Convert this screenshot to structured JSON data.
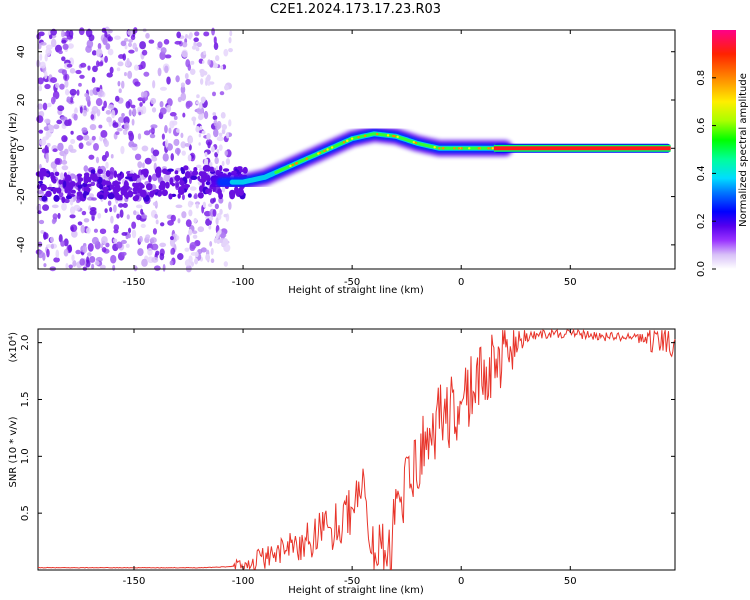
{
  "figure": {
    "title": "C2E1.2024.173.17.23.R03"
  },
  "chart_data": [
    {
      "type": "heatmap",
      "title": "C2E1.2024.173.17.23.R03",
      "xlabel": "Height of straight line (km)",
      "ylabel": "Frequency (Hz)",
      "xlim": [
        -194,
        98
      ],
      "ylim": [
        -50,
        49
      ],
      "xticks": [
        -150,
        -100,
        -50,
        0,
        50
      ],
      "xtick_labels": [
        "-150",
        "-100",
        "-50",
        "0",
        "50"
      ],
      "yticks": [
        -40,
        -20,
        0,
        20,
        40
      ],
      "ytick_labels": [
        "-40",
        "-20",
        "0",
        "20",
        "40"
      ],
      "ridge": {
        "x": [
          -190,
          -175,
          -160,
          -145,
          -130,
          -115,
          -100,
          -90,
          -80,
          -70,
          -60,
          -50,
          -40,
          -30,
          -20,
          -10,
          0,
          10,
          20,
          50,
          95
        ],
        "y": [
          -15,
          -16,
          -15,
          -15,
          -14,
          -14,
          -14,
          -12,
          -8,
          -4,
          0,
          4,
          6,
          5,
          2,
          0,
          0,
          0,
          0,
          0,
          0
        ]
      },
      "colorbar": {
        "label": "Normalized spectral amplitude",
        "range": [
          0,
          1
        ],
        "ticks": [
          0.0,
          0.2,
          0.4,
          0.6,
          0.8
        ],
        "tick_labels": [
          "0.0",
          "0.2",
          "0.4",
          "0.6",
          "0.8"
        ],
        "colors": [
          "#ffffff",
          "#d8c0f8",
          "#9933ff",
          "#5500ee",
          "#0000ff",
          "#0077ff",
          "#00ddff",
          "#00ff99",
          "#00ff00",
          "#aaff00",
          "#ffee00",
          "#ff8800",
          "#ff2200",
          "#ff0088"
        ]
      }
    },
    {
      "type": "line",
      "xlabel": "Height of straight line (km)",
      "ylabel": "SNR (10 * v/v)",
      "y_multiplier_label": "(x10⁴)",
      "xlim": [
        -194,
        98
      ],
      "ylim": [
        0,
        2.12
      ],
      "xticks": [
        -150,
        -100,
        -50,
        0,
        50
      ],
      "xtick_labels": [
        "-150",
        "-100",
        "-50",
        "0",
        "50"
      ],
      "yticks": [
        0.5,
        1.0,
        1.5,
        2.0
      ],
      "ytick_labels": [
        "0.5",
        "1.0",
        "1.5",
        "2.0"
      ],
      "color": "#e8342a",
      "series": [
        {
          "name": "SNR",
          "x": [
            -194,
            -180,
            -160,
            -140,
            -120,
            -105,
            -100,
            -95,
            -90,
            -85,
            -80,
            -75,
            -70,
            -65,
            -60,
            -55,
            -50,
            -47,
            -45,
            -43,
            -42,
            -40,
            -37,
            -35,
            -33,
            -30,
            -28,
            -25,
            -22,
            -20,
            -17,
            -15,
            -12,
            -10,
            -8,
            -5,
            -3,
            0,
            3,
            5,
            8,
            10,
            13,
            15,
            18,
            20,
            23,
            25,
            28,
            30,
            35,
            40,
            50,
            60,
            70,
            80,
            85,
            88,
            90,
            93,
            95,
            98
          ],
          "y": [
            0.02,
            0.02,
            0.02,
            0.02,
            0.02,
            0.03,
            0.05,
            0.08,
            0.1,
            0.15,
            0.18,
            0.2,
            0.25,
            0.3,
            0.35,
            0.4,
            0.5,
            0.55,
            0.75,
            0.55,
            0.2,
            0.15,
            0.1,
            0.12,
            0.2,
            0.4,
            0.55,
            0.65,
            0.8,
            1.0,
            1.05,
            1.05,
            1.15,
            1.3,
            1.25,
            1.35,
            1.4,
            1.5,
            1.55,
            1.55,
            1.65,
            1.7,
            1.75,
            1.8,
            1.8,
            1.9,
            1.95,
            1.98,
            2.02,
            2.05,
            2.07,
            2.08,
            2.08,
            2.06,
            2.05,
            2.04,
            2.03,
            2.04,
            2.05,
            2.02,
            2.0,
            2.0
          ]
        }
      ]
    }
  ]
}
